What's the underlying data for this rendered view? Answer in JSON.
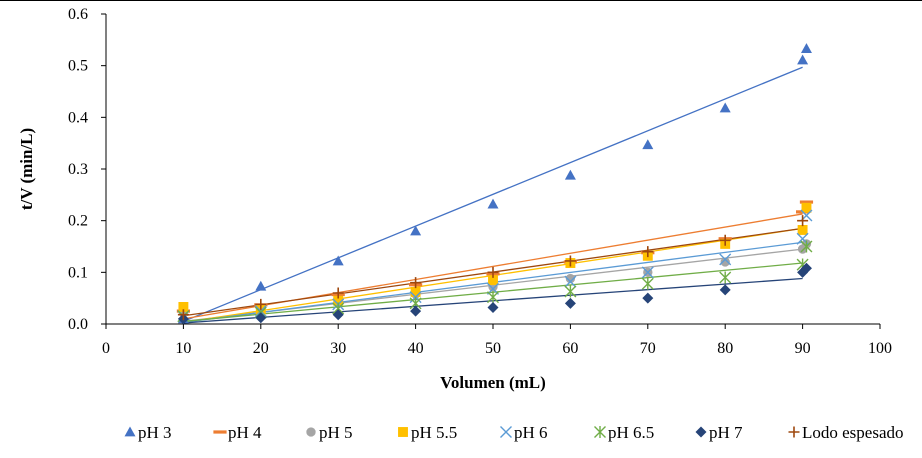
{
  "chart_data": {
    "type": "scatter",
    "title": "",
    "xlabel": "Volumen (mL)",
    "ylabel": "t/V (min/L)",
    "xlim": [
      0,
      100
    ],
    "ylim": [
      0,
      0.6
    ],
    "x_ticks": [
      "0",
      "10",
      "20",
      "30",
      "40",
      "50",
      "60",
      "70",
      "80",
      "90",
      "100"
    ],
    "y_ticks": [
      "0.0",
      "0.1",
      "0.2",
      "0.3",
      "0.4",
      "0.5",
      "0.6"
    ],
    "grid": false,
    "legend_position": "bottom",
    "series": [
      {
        "name": "pH 3",
        "marker": "triangle",
        "color": "#4472C4",
        "points": [
          [
            10,
            0.01
          ],
          [
            20,
            0.073
          ],
          [
            30,
            0.122
          ],
          [
            40,
            0.18
          ],
          [
            50,
            0.232
          ],
          [
            60,
            0.288
          ],
          [
            70,
            0.347
          ],
          [
            80,
            0.418
          ],
          [
            90,
            0.511
          ],
          [
            90.5,
            0.533
          ]
        ],
        "trendline": [
          [
            10,
            0.005
          ],
          [
            90,
            0.497
          ]
        ]
      },
      {
        "name": "pH 4",
        "marker": "dash",
        "color": "#ED7D31",
        "points": [
          [
            10,
            0.025
          ],
          [
            20,
            0.037
          ],
          [
            30,
            0.057
          ],
          [
            40,
            0.076
          ],
          [
            50,
            0.097
          ],
          [
            60,
            0.12
          ],
          [
            70,
            0.138
          ],
          [
            80,
            0.165
          ],
          [
            90,
            0.217
          ],
          [
            90.5,
            0.236
          ]
        ],
        "trendline": [
          [
            10,
            0.01
          ],
          [
            90,
            0.213
          ]
        ]
      },
      {
        "name": "pH 5",
        "marker": "circle",
        "color": "#A5A5A5",
        "points": [
          [
            10,
            0.022
          ],
          [
            20,
            0.03
          ],
          [
            30,
            0.045
          ],
          [
            40,
            0.058
          ],
          [
            50,
            0.072
          ],
          [
            60,
            0.088
          ],
          [
            70,
            0.1
          ],
          [
            80,
            0.12
          ],
          [
            90,
            0.145
          ],
          [
            90.5,
            0.155
          ]
        ],
        "trendline": [
          [
            10,
            0.005
          ],
          [
            90,
            0.145
          ]
        ]
      },
      {
        "name": "pH 5.5",
        "marker": "square",
        "color": "#FFC000",
        "points": [
          [
            10,
            0.033
          ],
          [
            20,
            0.028
          ],
          [
            30,
            0.045
          ],
          [
            40,
            0.062
          ],
          [
            50,
            0.085
          ],
          [
            60,
            0.118
          ],
          [
            70,
            0.132
          ],
          [
            80,
            0.155
          ],
          [
            90,
            0.182
          ],
          [
            90.5,
            0.225
          ]
        ],
        "trendline": [
          [
            10,
            0.003
          ],
          [
            90,
            0.185
          ]
        ]
      },
      {
        "name": "pH 6",
        "marker": "x",
        "color": "#5B9BD5",
        "points": [
          [
            10,
            0.015
          ],
          [
            20,
            0.025
          ],
          [
            30,
            0.038
          ],
          [
            40,
            0.052
          ],
          [
            50,
            0.068
          ],
          [
            60,
            0.082
          ],
          [
            70,
            0.1
          ],
          [
            80,
            0.125
          ],
          [
            90,
            0.165
          ],
          [
            90.5,
            0.21
          ]
        ],
        "trendline": [
          [
            10,
            0.003
          ],
          [
            90,
            0.158
          ]
        ]
      },
      {
        "name": "pH 6.5",
        "marker": "star",
        "color": "#70AD47",
        "points": [
          [
            10,
            0.015
          ],
          [
            20,
            0.022
          ],
          [
            30,
            0.03
          ],
          [
            40,
            0.04
          ],
          [
            50,
            0.052
          ],
          [
            60,
            0.063
          ],
          [
            70,
            0.078
          ],
          [
            80,
            0.09
          ],
          [
            90,
            0.115
          ],
          [
            90.5,
            0.15
          ]
        ],
        "trendline": [
          [
            10,
            0.005
          ],
          [
            90,
            0.118
          ]
        ]
      },
      {
        "name": "pH 7",
        "marker": "diamond",
        "color": "#264478",
        "points": [
          [
            10,
            0.01
          ],
          [
            20,
            0.012
          ],
          [
            30,
            0.018
          ],
          [
            40,
            0.025
          ],
          [
            50,
            0.032
          ],
          [
            60,
            0.04
          ],
          [
            70,
            0.05
          ],
          [
            80,
            0.066
          ],
          [
            90,
            0.1
          ],
          [
            90.5,
            0.108
          ]
        ],
        "trendline": [
          [
            10,
            0.002
          ],
          [
            90,
            0.088
          ]
        ]
      },
      {
        "name": "Lodo espesado",
        "marker": "plus",
        "color": "#9E480E",
        "points": [
          [
            10,
            0.018
          ],
          [
            20,
            0.038
          ],
          [
            30,
            0.06
          ],
          [
            40,
            0.08
          ],
          [
            50,
            0.1
          ],
          [
            60,
            0.122
          ],
          [
            70,
            0.14
          ],
          [
            80,
            0.162
          ],
          [
            90,
            0.2
          ]
        ],
        "trendline": [
          [
            10,
            0.016
          ],
          [
            90,
            0.185
          ]
        ]
      }
    ]
  }
}
